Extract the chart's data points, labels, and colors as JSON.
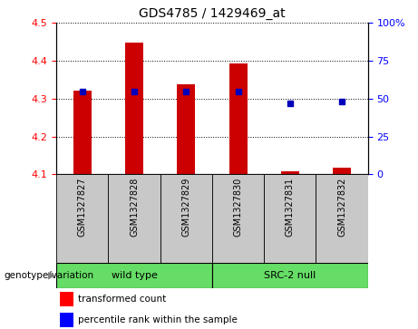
{
  "title": "GDS4785 / 1429469_at",
  "samples": [
    "GSM1327827",
    "GSM1327828",
    "GSM1327829",
    "GSM1327830",
    "GSM1327831",
    "GSM1327832"
  ],
  "transformed_count": [
    4.322,
    4.448,
    4.338,
    4.392,
    4.108,
    4.118
  ],
  "percentile_rank": [
    55,
    55,
    55,
    55,
    47,
    48
  ],
  "ylim_left": [
    4.1,
    4.5
  ],
  "ylim_right": [
    0,
    100
  ],
  "yticks_left": [
    4.1,
    4.2,
    4.3,
    4.4,
    4.5
  ],
  "yticks_right": [
    0,
    25,
    50,
    75,
    100
  ],
  "bar_color": "#CC0000",
  "point_color": "#0000BB",
  "bar_bottom": 4.1,
  "group_wt_label": "wild type",
  "group_src_label": "SRC-2 null",
  "group_color": "#66DD66",
  "sample_bg_color": "#C8C8C8",
  "group_label_text": "genotype/variation",
  "legend_red_label": "transformed count",
  "legend_blue_label": "percentile rank within the sample",
  "plot_bg_color": "#FFFFFF",
  "fig_bg_color": "#FFFFFF"
}
